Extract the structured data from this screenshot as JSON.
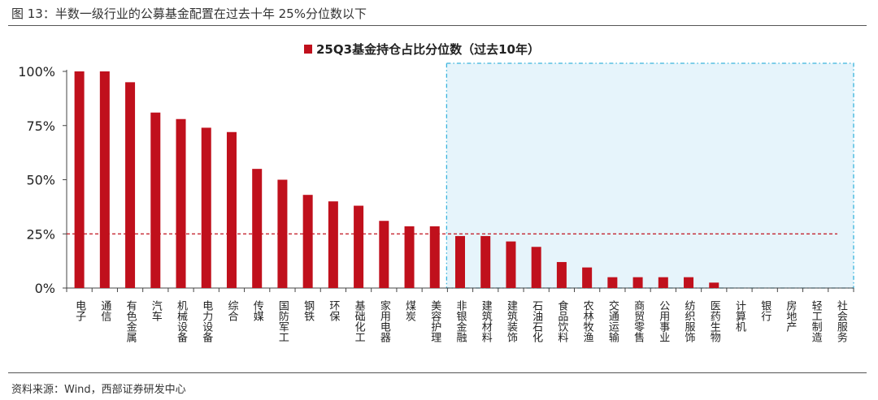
{
  "figure": {
    "title": "图 13：半数一级行业的公募基金配置在过去十年 25%分位数以下",
    "source": "资料来源：Wind，西部证券研发中心"
  },
  "colors": {
    "bar": "#c0101c",
    "reference_line": "#c0101c",
    "highlight_fill": "#e6f4fb",
    "highlight_border": "#39b3dc"
  },
  "chart_data": {
    "type": "bar",
    "legend": "25Q3基金持仓占比分位数（过去10年）",
    "legend_position": "top-center",
    "ylim": [
      0,
      1
    ],
    "yticks": [
      0,
      0.25,
      0.5,
      0.75,
      1.0
    ],
    "ytick_labels": [
      "0%",
      "25%",
      "50%",
      "75%",
      "100%"
    ],
    "reference_line": 0.25,
    "highlight_from_category": "非银金融",
    "grid": false,
    "categories": [
      "电子",
      "通信",
      "有色金属",
      "汽车",
      "机械设备",
      "电力设备",
      "综合",
      "传媒",
      "国防军工",
      "钢铁",
      "环保",
      "基础化工",
      "家用电器",
      "煤炭",
      "美容护理",
      "非银金融",
      "建筑材料",
      "建筑装饰",
      "石油石化",
      "食品饮料",
      "农林牧渔",
      "交通运输",
      "商贸零售",
      "公用事业",
      "纺织服饰",
      "医药生物",
      "计算机",
      "银行",
      "房地产",
      "轻工制造",
      "社会服务"
    ],
    "values": [
      1.0,
      1.0,
      0.95,
      0.81,
      0.78,
      0.74,
      0.72,
      0.55,
      0.5,
      0.43,
      0.4,
      0.38,
      0.31,
      0.285,
      0.285,
      0.24,
      0.24,
      0.215,
      0.19,
      0.12,
      0.095,
      0.05,
      0.05,
      0.05,
      0.05,
      0.025,
      0,
      0,
      0,
      0,
      0
    ]
  }
}
